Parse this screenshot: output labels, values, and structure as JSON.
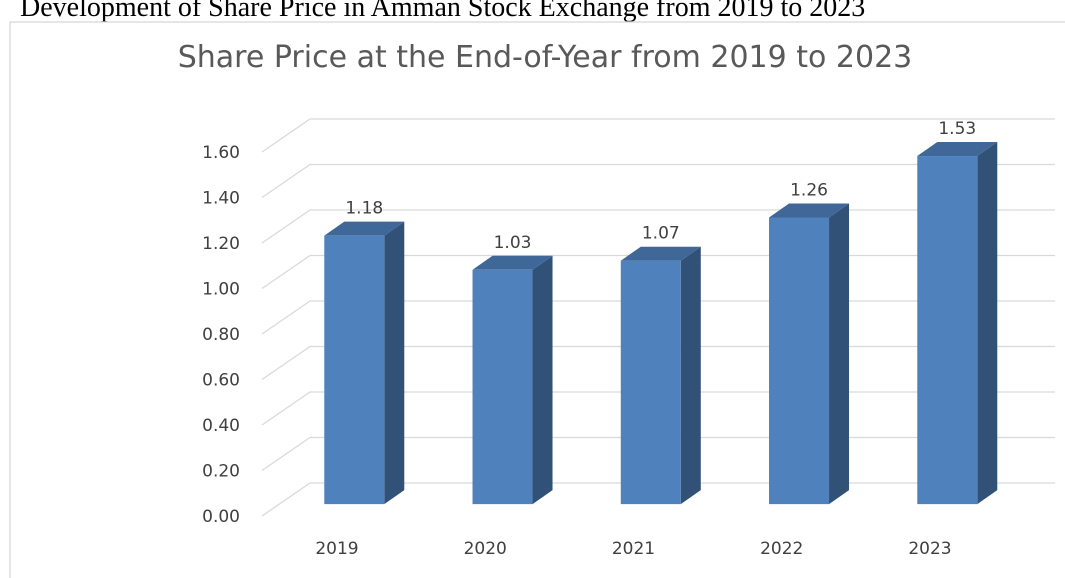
{
  "heading": "Development of Share Price in Amman Stock Exchange from 2019 to 2023",
  "chart_data": {
    "type": "bar3d",
    "title": "Share Price at the End-of-Year from 2019 to 2023",
    "categories": [
      "2019",
      "2020",
      "2021",
      "2022",
      "2023"
    ],
    "values": [
      1.18,
      1.03,
      1.07,
      1.26,
      1.53
    ],
    "color": "#4f81bd",
    "ylim": [
      0,
      1.6
    ],
    "yticks": [
      {
        "value": 0,
        "label": "0.00"
      },
      {
        "value": 0.2,
        "label": "0.20"
      },
      {
        "value": 0.4,
        "label": "0.40"
      },
      {
        "value": 0.6,
        "label": "0.60"
      },
      {
        "value": 0.8,
        "label": "0.80"
      },
      {
        "value": 1,
        "label": "1.00"
      },
      {
        "value": 1.2,
        "label": "1.20"
      },
      {
        "value": 1.4,
        "label": "1.40"
      },
      {
        "value": 1.6,
        "label": "1.60"
      }
    ],
    "grid": true
  }
}
